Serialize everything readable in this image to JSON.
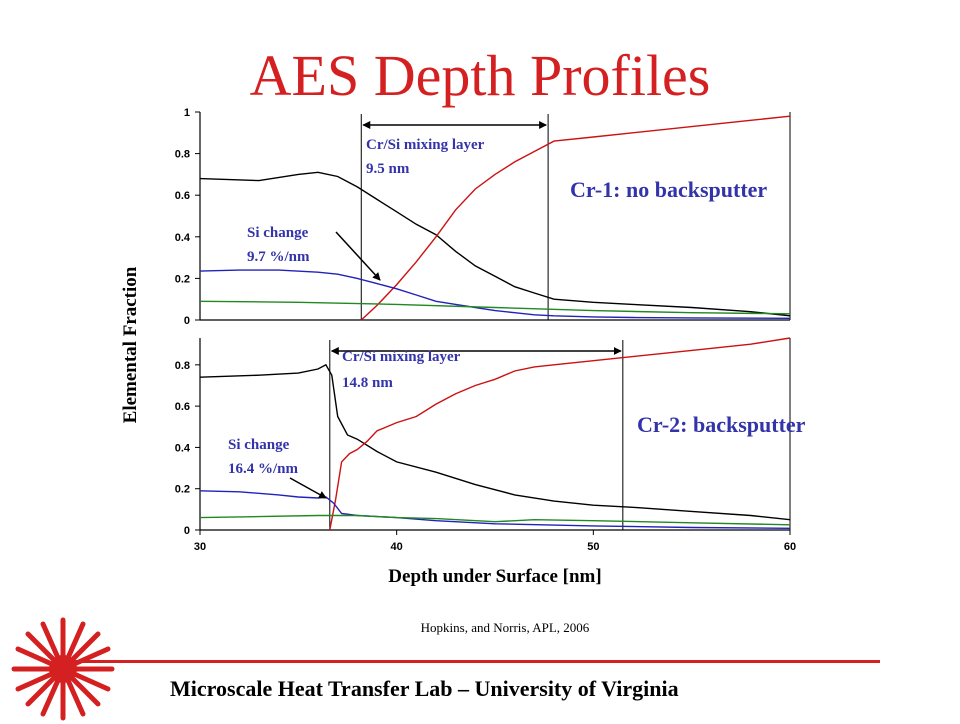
{
  "slide": {
    "title": "AES Depth Profiles",
    "citation": "Hopkins, and Norris, APL, 2006",
    "footer": "Microscale Heat Transfer Lab – University of Virginia",
    "logo_icon": "red-sunburst-icon",
    "accent_color": "#d42020",
    "annotation_color": "#3333aa"
  },
  "chart_data": [
    {
      "type": "line",
      "xlim": [
        30,
        60
      ],
      "ylim": [
        0,
        1
      ],
      "yticks": [
        "0",
        "0.2",
        "0.4",
        "0.6",
        "0.8",
        "1"
      ],
      "series": [
        {
          "color": "#000000",
          "x": [
            30,
            33,
            35,
            36,
            37,
            38,
            39,
            40,
            41,
            42,
            43,
            44,
            45,
            46,
            47,
            48,
            50,
            52,
            55,
            58,
            60
          ],
          "y": [
            0.68,
            0.67,
            0.7,
            0.71,
            0.69,
            0.64,
            0.58,
            0.52,
            0.46,
            0.41,
            0.33,
            0.26,
            0.21,
            0.16,
            0.13,
            0.1,
            0.085,
            0.075,
            0.06,
            0.04,
            0.02
          ]
        },
        {
          "color": "#cc1111",
          "x": [
            38.2,
            39,
            40,
            41,
            42,
            43,
            44,
            45,
            46,
            47,
            48,
            50,
            52,
            55,
            58,
            60
          ],
          "y": [
            0.0,
            0.07,
            0.17,
            0.28,
            0.4,
            0.53,
            0.63,
            0.7,
            0.76,
            0.81,
            0.86,
            0.88,
            0.9,
            0.93,
            0.96,
            0.98
          ]
        },
        {
          "color": "#2222bb",
          "x": [
            30,
            32,
            34,
            36,
            37,
            38,
            39,
            40,
            41,
            42,
            43,
            44,
            45,
            46,
            47,
            48,
            50,
            52,
            55,
            60
          ],
          "y": [
            0.235,
            0.24,
            0.24,
            0.23,
            0.22,
            0.2,
            0.175,
            0.15,
            0.12,
            0.09,
            0.075,
            0.06,
            0.045,
            0.035,
            0.025,
            0.02,
            0.015,
            0.012,
            0.01,
            0.008
          ]
        },
        {
          "color": "#228822",
          "x": [
            30,
            35,
            40,
            45,
            50,
            55,
            60
          ],
          "y": [
            0.09,
            0.085,
            0.075,
            0.06,
            0.045,
            0.035,
            0.03
          ]
        }
      ],
      "annotations": {
        "mixing_label": "Cr/Si mixing layer",
        "mixing_value": "9.5 nm",
        "si_label": "Si change",
        "si_value": "9.7 %/nm",
        "sample_label": "Cr-1: no backsputter",
        "bracket": [
          38.2,
          47.7
        ]
      }
    },
    {
      "type": "line",
      "xlim": [
        30,
        60
      ],
      "ylim": [
        0,
        0.93
      ],
      "xticks": [
        "30",
        "40",
        "50",
        "60"
      ],
      "yticks": [
        "0",
        "0.2",
        "0.4",
        "0.6",
        "0.8"
      ],
      "xlabel": "Depth under Surface [nm]",
      "ylabel": "Elemental Fraction",
      "series": [
        {
          "color": "#000000",
          "x": [
            30,
            33,
            35,
            36,
            36.4,
            36.7,
            37,
            37.5,
            38,
            39,
            40,
            42,
            44,
            46,
            48,
            50,
            52,
            55,
            58,
            60
          ],
          "y": [
            0.74,
            0.75,
            0.76,
            0.78,
            0.8,
            0.75,
            0.55,
            0.46,
            0.44,
            0.38,
            0.33,
            0.28,
            0.22,
            0.17,
            0.14,
            0.12,
            0.11,
            0.09,
            0.07,
            0.05
          ]
        },
        {
          "color": "#cc1111",
          "x": [
            36.6,
            36.9,
            37.2,
            37.6,
            38,
            38.5,
            39,
            40,
            41,
            42,
            43,
            44,
            45,
            46,
            47,
            48,
            50,
            52,
            55,
            58,
            60
          ],
          "y": [
            0.0,
            0.15,
            0.33,
            0.37,
            0.39,
            0.43,
            0.48,
            0.52,
            0.55,
            0.61,
            0.66,
            0.7,
            0.73,
            0.77,
            0.79,
            0.8,
            0.82,
            0.84,
            0.87,
            0.9,
            0.93
          ]
        },
        {
          "color": "#2222bb",
          "x": [
            30,
            32,
            34,
            35,
            36,
            36.4,
            36.8,
            37.2,
            38,
            40,
            42,
            45,
            50,
            55,
            60
          ],
          "y": [
            0.19,
            0.185,
            0.17,
            0.16,
            0.155,
            0.16,
            0.13,
            0.08,
            0.07,
            0.06,
            0.045,
            0.03,
            0.02,
            0.012,
            0.008
          ]
        },
        {
          "color": "#228822",
          "x": [
            30,
            33,
            36,
            38,
            40,
            42,
            45,
            47,
            50,
            55,
            60
          ],
          "y": [
            0.06,
            0.065,
            0.07,
            0.07,
            0.06,
            0.055,
            0.04,
            0.05,
            0.045,
            0.035,
            0.025
          ]
        }
      ],
      "annotations": {
        "mixing_label": "Cr/Si mixing layer",
        "mixing_value": "14.8 nm",
        "si_label": "Si change",
        "si_value": "16.4 %/nm",
        "sample_label": "Cr-2: backsputter",
        "bracket": [
          36.6,
          51.5
        ]
      }
    }
  ]
}
